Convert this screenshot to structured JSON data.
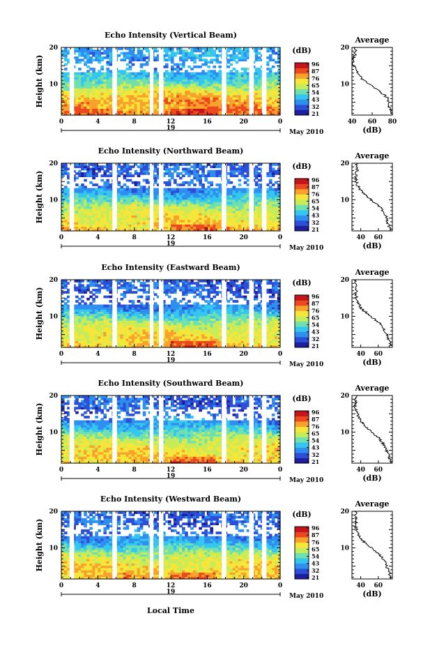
{
  "figure": {
    "x_title": "Local Time",
    "date_label": "May 2010",
    "day_label": "19",
    "time_ticks": [
      "0",
      "4",
      "8",
      "12",
      "16",
      "20",
      "0"
    ],
    "height_ticks": [
      "20",
      "10"
    ],
    "avg_title": "Average",
    "avg_xlabel": "(dB)",
    "colorbar_unit": "(dB)",
    "colorbar_ticks": [
      "96",
      "87",
      "76",
      "65",
      "54",
      "43",
      "32",
      "21"
    ],
    "colormap": [
      "#1e1e9e",
      "#2b4fd6",
      "#2f8ff0",
      "#34c6ee",
      "#6fe0b0",
      "#c6ec5a",
      "#f6e63a",
      "#f8a22c",
      "#ec4a1e",
      "#c4141e"
    ]
  },
  "chart_data": [
    {
      "type": "heatmap",
      "title": "Echo Intensity (Vertical Beam)",
      "ylabel": "Height (km)",
      "xlabel": "Local Time",
      "xlim": [
        0,
        24
      ],
      "ylim": [
        1.5,
        20
      ],
      "zlabel": "(dB)",
      "zlim": [
        21,
        96
      ],
      "data_gaps_hours": [
        [
          0.9,
          1.4
        ],
        [
          5.6,
          6.1
        ],
        [
          9.7,
          10.1
        ],
        [
          10.7,
          11.2
        ],
        [
          17.6,
          18.1
        ],
        [
          20.6,
          21.1
        ],
        [
          22.0,
          22.5
        ]
      ],
      "average_profile": {
        "xlabel": "(dB)",
        "xlim": [
          40,
          80
        ],
        "xticks": [
          "40",
          "60",
          "80"
        ],
        "height_km": [
          2,
          4,
          6,
          8,
          10,
          12,
          14,
          16,
          18,
          20
        ],
        "intensity_db": [
          80,
          77,
          76,
          68,
          56,
          48,
          43,
          41,
          43,
          44
        ]
      }
    },
    {
      "type": "heatmap",
      "title": "Echo Intensity (Northward Beam)",
      "ylabel": "Height (km)",
      "xlabel": "Local Time",
      "xlim": [
        0,
        24
      ],
      "ylim": [
        1.5,
        20
      ],
      "zlabel": "(dB)",
      "zlim": [
        21,
        96
      ],
      "data_gaps_hours": [
        [
          0.9,
          1.4
        ],
        [
          5.6,
          6.1
        ],
        [
          9.7,
          10.1
        ],
        [
          10.7,
          11.2
        ],
        [
          17.6,
          18.1
        ],
        [
          20.6,
          21.1
        ],
        [
          22.0,
          22.5
        ]
      ],
      "average_profile": {
        "xlabel": "(dB)",
        "xlim": [
          30,
          76
        ],
        "xticks": [
          "40",
          "60"
        ],
        "height_km": [
          2,
          4,
          6,
          8,
          10,
          12,
          14,
          16,
          18,
          20
        ],
        "intensity_db": [
          74,
          70,
          68,
          62,
          52,
          42,
          36,
          34,
          36,
          35
        ]
      }
    },
    {
      "type": "heatmap",
      "title": "Echo Intensity (Eastward Beam)",
      "ylabel": "Height (km)",
      "xlabel": "Local Time",
      "xlim": [
        0,
        24
      ],
      "ylim": [
        1.5,
        20
      ],
      "zlabel": "(dB)",
      "zlim": [
        21,
        96
      ],
      "data_gaps_hours": [
        [
          0.9,
          1.4
        ],
        [
          5.6,
          6.1
        ],
        [
          9.7,
          10.1
        ],
        [
          10.7,
          11.2
        ],
        [
          17.6,
          18.1
        ],
        [
          20.6,
          21.1
        ],
        [
          22.0,
          22.5
        ]
      ],
      "average_profile": {
        "xlabel": "(dB)",
        "xlim": [
          30,
          76
        ],
        "xticks": [
          "40",
          "60"
        ],
        "height_km": [
          2,
          4,
          6,
          8,
          10,
          12,
          14,
          16,
          18,
          20
        ],
        "intensity_db": [
          74,
          71,
          68,
          62,
          52,
          41,
          36,
          34,
          35,
          34
        ]
      }
    },
    {
      "type": "heatmap",
      "title": "Echo Intensity (Southward Beam)",
      "ylabel": "Height (km)",
      "xlabel": "Local Time",
      "xlim": [
        0,
        24
      ],
      "ylim": [
        1.5,
        20
      ],
      "zlabel": "(dB)",
      "zlim": [
        21,
        96
      ],
      "data_gaps_hours": [
        [
          0.9,
          1.4
        ],
        [
          5.6,
          6.1
        ],
        [
          9.7,
          10.1
        ],
        [
          10.7,
          11.2
        ],
        [
          17.6,
          18.1
        ],
        [
          20.6,
          21.1
        ],
        [
          22.0,
          22.5
        ]
      ],
      "average_profile": {
        "xlabel": "(dB)",
        "xlim": [
          30,
          76
        ],
        "xticks": [
          "40",
          "60"
        ],
        "height_km": [
          2,
          4,
          6,
          8,
          10,
          12,
          14,
          16,
          18,
          20
        ],
        "intensity_db": [
          74,
          71,
          68,
          62,
          53,
          43,
          38,
          34,
          34,
          35
        ]
      }
    },
    {
      "type": "heatmap",
      "title": "Echo Intensity (Westward Beam)",
      "ylabel": "Height (km)",
      "xlabel": "Local Time",
      "xlim": [
        0,
        24
      ],
      "ylim": [
        1.5,
        20
      ],
      "zlabel": "(dB)",
      "zlim": [
        21,
        96
      ],
      "data_gaps_hours": [
        [
          0.9,
          1.4
        ],
        [
          5.6,
          6.1
        ],
        [
          9.7,
          10.1
        ],
        [
          10.7,
          11.2
        ],
        [
          17.6,
          18.1
        ],
        [
          20.6,
          21.1
        ],
        [
          22.0,
          22.5
        ]
      ],
      "average_profile": {
        "xlabel": "(dB)",
        "xlim": [
          30,
          76
        ],
        "xticks": [
          "40",
          "60"
        ],
        "height_km": [
          2,
          4,
          6,
          8,
          10,
          12,
          14,
          16,
          18,
          20
        ],
        "intensity_db": [
          74,
          71,
          68,
          62,
          52,
          42,
          37,
          34,
          35,
          34
        ]
      }
    }
  ]
}
